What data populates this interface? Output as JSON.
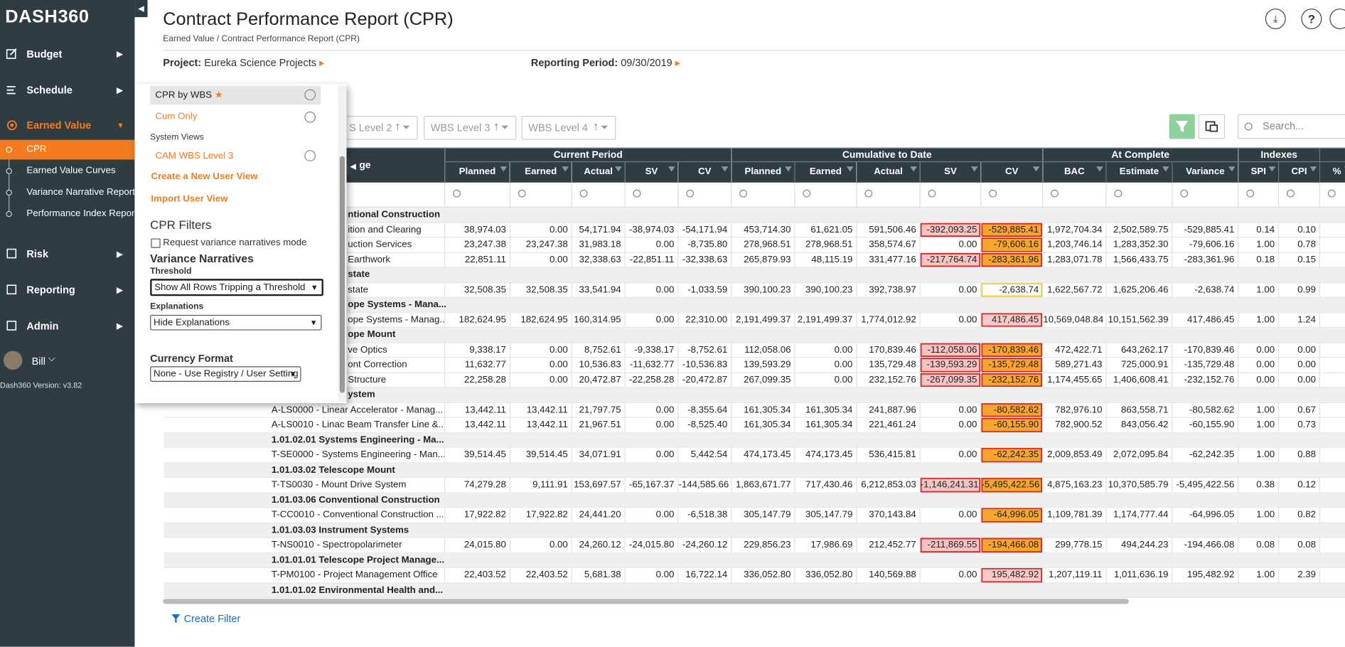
{
  "sidebar": {
    "logo": "DASH360",
    "nav_top": [
      "Budget",
      "Schedule"
    ],
    "active": "Earned Value",
    "sub": [
      "CPR",
      "Earned Value Curves",
      "Variance Narrative Report",
      "Performance Index Report"
    ],
    "nav_bottom": [
      "Risk",
      "Reporting",
      "Admin"
    ],
    "user": "Bill",
    "version": "Dash360 Version: v3.82"
  },
  "header": {
    "title": "Contract Performance Report (CPR)",
    "breadcrumb": [
      "Earned Value",
      "/",
      "Contract Performance Report (CPR)"
    ],
    "project_label": "Project:",
    "project": "Eureka Science Projects",
    "period_label": "Reporting Period:",
    "period": "09/30/2019"
  },
  "panel": {
    "views": [
      "CPR by WBS",
      "Cum Only"
    ],
    "system_views_label": "System Views",
    "system_views": [
      "CAM WBS Level 3"
    ],
    "create_view": "Create a New User View",
    "import_view": "Import User View",
    "filters_title": "CPR Filters",
    "checkbox": "Request variance narratives mode",
    "narratives_title": "Variance Narratives",
    "threshold_label": "Threshold",
    "threshold": "Show All Rows Tripping a Threshold",
    "explanations_label": "Explanations",
    "explanations": "Hide Explanations",
    "currency_label": "Currency Format",
    "currency": "None - Use Registry / User Setting"
  },
  "toolbar": {
    "filters": [
      "S Level 2",
      "WBS Level 3",
      "WBS Level 4"
    ],
    "search": "Search..."
  },
  "table": {
    "name_header": "kage",
    "groups": [
      {
        "label": "Current Period",
        "columns": [
          "Planned",
          "Earned",
          "Actual",
          "SV",
          "CV"
        ]
      },
      {
        "label": "Cumulative to Date",
        "columns": [
          "Planned",
          "Earned",
          "Actual",
          "SV",
          "CV"
        ]
      },
      {
        "label": "At Complete",
        "columns": [
          "BAC",
          "Estimate",
          "Variance"
        ]
      },
      {
        "label": "Indexes",
        "columns": [
          "SPI",
          "CPI"
        ]
      },
      {
        "label": null,
        "columns": [
          "%"
        ]
      }
    ],
    "rows": [
      {
        "label": "ntional Construction"
      },
      {
        "label": "ition and Clearing",
        "cells": [
          "38,974.03",
          "0.00",
          "54,171.94",
          "-38,974.03",
          "-54,171.94",
          "453,714.30",
          "61,621.05",
          "591,506.46",
          "-392,093.25",
          "-529,885.41",
          "1,972,704.34",
          "2,502,589.75",
          "-529,885.41",
          "0.14",
          "0.10"
        ]
      },
      {
        "label": "uction Services",
        "cells": [
          "23,247.38",
          "23,247.38",
          "31,983.18",
          "0.00",
          "-8,735.80",
          "278,968.51",
          "278,968.51",
          "358,574.67",
          "0.00",
          "-79,606.16",
          "1,203,746.14",
          "1,283,352.30",
          "-79,606.16",
          "1.00",
          "0.78"
        ]
      },
      {
        "label": "Earthwork",
        "cells": [
          "22,851.11",
          "0.00",
          "32,338.63",
          "-22,851.11",
          "-32,338.63",
          "265,879.93",
          "48,115.19",
          "331,477.16",
          "-217,764.74",
          "-283,361.96",
          "1,283,071.78",
          "1,566,433.75",
          "-283,361.96",
          "0.18",
          "0.15"
        ]
      },
      {
        "label": "state"
      },
      {
        "label": "state",
        "cells": [
          "32,508.35",
          "32,508.35",
          "33,541.94",
          "0.00",
          "-1,033.59",
          "390,100.23",
          "390,100.23",
          "392,738.97",
          "0.00",
          "-2,638.74",
          "1,622,567.72",
          "1,625,206.46",
          "-2,638.74",
          "1.00",
          "0.99"
        ]
      },
      {
        "label": "ope Systems - Mana..."
      },
      {
        "label": "ope Systems - Manag...",
        "cells": [
          "182,624.95",
          "182,624.95",
          "160,314.95",
          "0.00",
          "22,310.00",
          "2,191,499.37",
          "2,191,499.37",
          "1,774,012.92",
          "0.00",
          "417,486.45",
          "10,569,048.84",
          "10,151,562.39",
          "417,486.45",
          "1.00",
          "1.24"
        ]
      },
      {
        "label": "ope Mount"
      },
      {
        "label": "ve Optics",
        "cells": [
          "9,338.17",
          "0.00",
          "8,752.61",
          "-9,338.17",
          "-8,752.61",
          "112,058.06",
          "0.00",
          "170,839.46",
          "-112,058.06",
          "-170,839.46",
          "472,422.71",
          "643,262.17",
          "-170,839.46",
          "0.00",
          "0.00"
        ]
      },
      {
        "label": "ont Correction",
        "cells": [
          "11,632.77",
          "0.00",
          "10,536.83",
          "-11,632.77",
          "-10,536.83",
          "139,593.29",
          "0.00",
          "135,729.48",
          "-139,593.29",
          "-135,729.48",
          "589,271.43",
          "725,000.91",
          "-135,729.48",
          "0.00",
          "0.00"
        ]
      },
      {
        "label": "Structure",
        "cells": [
          "22,258.28",
          "0.00",
          "20,472.87",
          "-22,258.28",
          "-20,472.87",
          "267,099.35",
          "0.00",
          "232,152.76",
          "-267,099.35",
          "-232,152.76",
          "1,174,455.65",
          "1,406,608.41",
          "-232,152.76",
          "0.00",
          "0.00"
        ]
      },
      {
        "label": "ystem"
      },
      {
        "label": "A-LS0000 - Linear Accelerator - Manag...",
        "cells": [
          "13,442.11",
          "13,442.11",
          "21,797.75",
          "0.00",
          "-8,355.64",
          "161,305.34",
          "161,305.34",
          "241,887.96",
          "0.00",
          "-80,582.62",
          "782,976.10",
          "863,558.71",
          "-80,582.62",
          "1.00",
          "0.67"
        ]
      },
      {
        "label": "A-LS0010 - Linac Beam Transfer Line &...",
        "cells": [
          "13,442.11",
          "13,442.11",
          "21,967.51",
          "0.00",
          "-8,525.40",
          "161,305.34",
          "161,305.34",
          "221,461.24",
          "0.00",
          "-60,155.90",
          "782,900.52",
          "843,056.42",
          "-60,155.90",
          "1.00",
          "0.73"
        ]
      },
      {
        "label": "1.01.02.01 Systems Engineering - Ma..."
      },
      {
        "label": "T-SE0000 - Systems Engineering - Man...",
        "cells": [
          "39,514.45",
          "39,514.45",
          "34,071.91",
          "0.00",
          "5,442.54",
          "474,173.45",
          "474,173.45",
          "536,415.81",
          "0.00",
          "-62,242.35",
          "2,009,853.49",
          "2,072,095.84",
          "-62,242.35",
          "1.00",
          "0.88"
        ]
      },
      {
        "label": "1.01.03.02 Telescope Mount"
      },
      {
        "label": "T-TS0030 - Mount Drive System",
        "cells": [
          "74,279.28",
          "9,111.91",
          "153,697.57",
          "-65,167.37",
          "-144,585.66",
          "1,863,671.77",
          "717,430.46",
          "6,212,853.03",
          "-1,146,241.31",
          "-5,495,422.56",
          "4,875,163.23",
          "10,370,585.79",
          "-5,495,422.56",
          "0.38",
          "0.12"
        ]
      },
      {
        "label": "1.01.03.06 Conventional Construction"
      },
      {
        "label": "T-CC0010 - Conventional Construction ...",
        "cells": [
          "17,922.82",
          "17,922.82",
          "24,441.20",
          "0.00",
          "-6,518.38",
          "305,147.79",
          "305,147.79",
          "370,143.84",
          "0.00",
          "-64,996.05",
          "1,109,781.39",
          "1,174,777.44",
          "-64,996.05",
          "1.00",
          "0.82"
        ]
      },
      {
        "label": "1.01.03.03 Instrument Systems"
      },
      {
        "label": "T-NS0010 - Spectropolarimeter",
        "cells": [
          "24,015.80",
          "0.00",
          "24,260.12",
          "-24,015.80",
          "-24,260.12",
          "229,856.23",
          "17,986.69",
          "212,452.77",
          "-211,869.55",
          "-194,466.08",
          "299,778.15",
          "494,244.23",
          "-194,466.08",
          "0.08",
          "0.08"
        ]
      },
      {
        "label": "1.01.01.01 Telescope Project Manage..."
      },
      {
        "label": "T-PM0100 - Project Management Office",
        "cells": [
          "22,403.52",
          "22,403.52",
          "5,681.38",
          "0.00",
          "16,722.14",
          "336,052.80",
          "336,052.80",
          "140,569.88",
          "0.00",
          "195,482.92",
          "1,207,119.11",
          "1,011,636.19",
          "195,482.92",
          "1.00",
          "2.39"
        ]
      },
      {
        "label": "1.01.01.02 Environmental Health and..."
      }
    ]
  },
  "footer": {
    "create_filter": "Create Filter"
  }
}
